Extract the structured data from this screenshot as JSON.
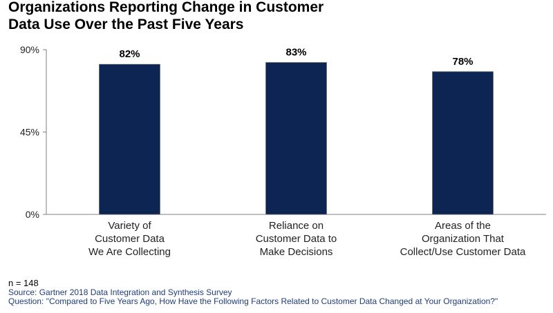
{
  "title_line1": "Organizations Reporting Change in Customer",
  "title_line2": "Data Use Over the Past Five Years",
  "chart_data": {
    "type": "bar",
    "categories": [
      [
        "Variety of",
        "Customer Data",
        "We Are Collecting"
      ],
      [
        "Reliance on",
        "Customer Data to",
        "Make Decisions"
      ],
      [
        "Areas of the",
        "Organization That",
        "Collect/Use Customer Data"
      ]
    ],
    "values": [
      82,
      83,
      78
    ],
    "data_labels": [
      "82%",
      "83%",
      "78%"
    ],
    "yticks": [
      {
        "value": 0,
        "label": "0%"
      },
      {
        "value": 45,
        "label": "45%"
      },
      {
        "value": 90,
        "label": "90%"
      }
    ],
    "ylim": [
      0,
      90
    ],
    "bar_color": "#0c2552",
    "grid": false
  },
  "footnote": {
    "n": "n = 148",
    "source": "Source: Gartner 2018 Data Integration and Synthesis Survey",
    "question": "Question: \"Compared to Five Years Ago, How Have the Following Factors Related to Customer Data Changed at Your Organization?\""
  }
}
